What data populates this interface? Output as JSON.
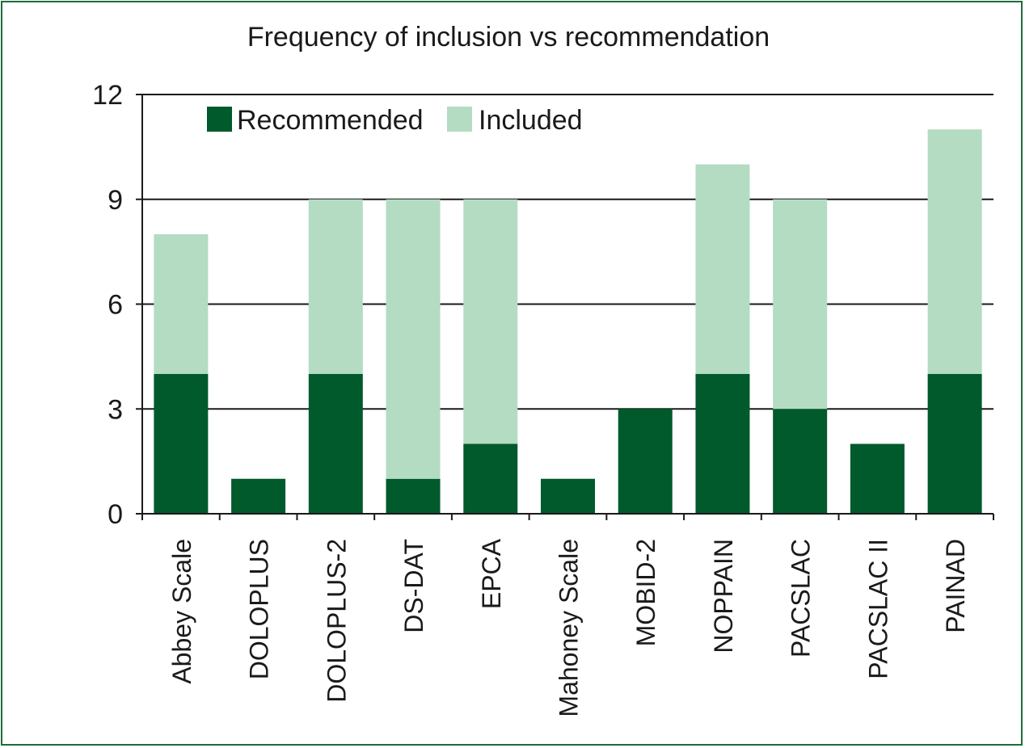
{
  "chart_data": {
    "type": "bar",
    "stacked": true,
    "title": "Frequency of inclusion vs recommendation",
    "xlabel": "",
    "ylabel": "",
    "ylim": [
      0,
      12
    ],
    "yticks": [
      0,
      3,
      6,
      9,
      12
    ],
    "grid": true,
    "legend_position": "top-left",
    "categories": [
      "Abbey Scale",
      "DOLOPLUS",
      "DOLOPLUS-2",
      "DS-DAT",
      "EPCA",
      "Mahoney Scale",
      "MOBID-2",
      "NOPPAIN",
      "PACSLAC",
      "PACSLAC II",
      "PAINAD"
    ],
    "series": [
      {
        "name": "Recommended",
        "color": "#005a2b",
        "values": [
          4,
          1,
          4,
          1,
          2,
          1,
          3,
          4,
          3,
          2,
          4
        ]
      },
      {
        "name": "Included",
        "color": "#b3dcc2",
        "values": [
          4,
          0,
          5,
          8,
          7,
          0,
          0,
          6,
          6,
          0,
          7
        ]
      }
    ],
    "colors": {
      "frame": "#1f6b3a",
      "axis": "#1a1a1a",
      "grid": "#1a1a1a"
    }
  }
}
